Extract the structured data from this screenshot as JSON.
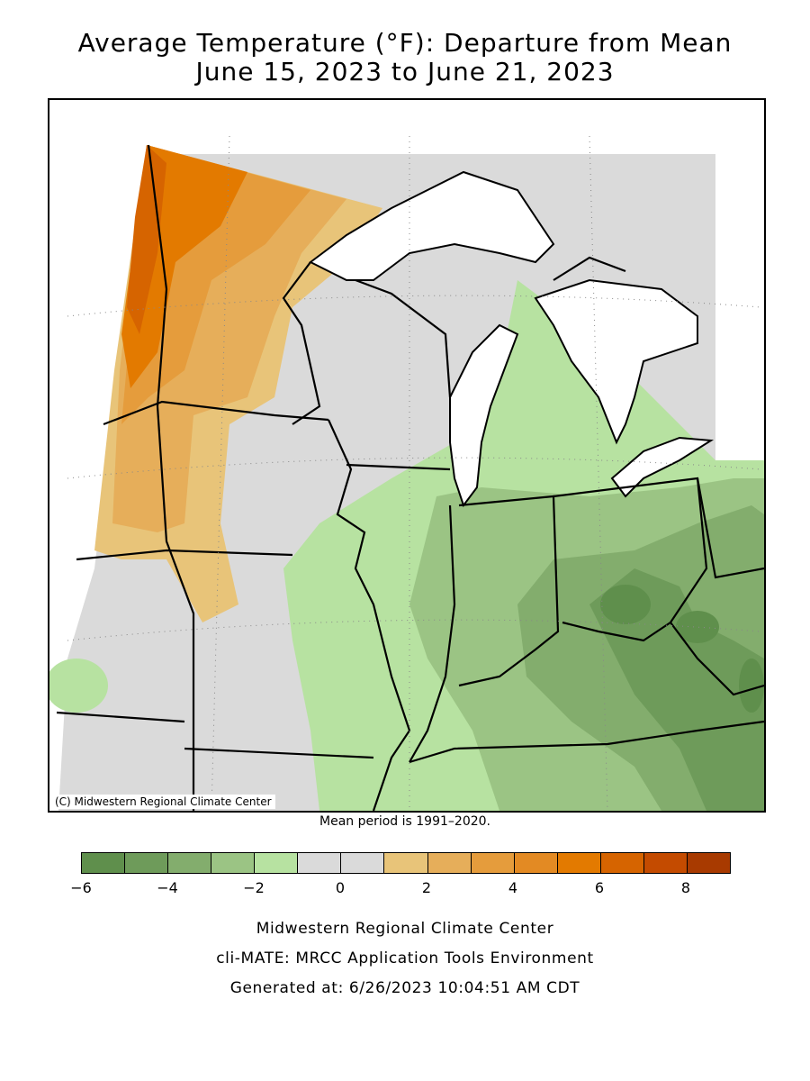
{
  "title_line1": "Average Temperature (°F): Departure from Mean",
  "title_line2": "June 15, 2023 to June 21, 2023",
  "map": {
    "region": "Midwest United States",
    "copyright": "(C) Midwestern Regional Climate Center"
  },
  "mean_period": "Mean period is 1991–2020.",
  "legend": {
    "colors": [
      "#5f8f4c",
      "#6e9b5a",
      "#83ad6d",
      "#9bc484",
      "#b7e2a1",
      "#dadada",
      "#dadada",
      "#e8c479",
      "#e6ae5a",
      "#e59c3c",
      "#e38a23",
      "#e37a00",
      "#d66400",
      "#c44b00",
      "#a83a00"
    ],
    "tick_labels": [
      "−6",
      "−4",
      "−2",
      "0",
      "2",
      "4",
      "6",
      "8"
    ],
    "tick_values": [
      -6,
      -4,
      -2,
      0,
      2,
      4,
      6,
      8
    ],
    "min": -6,
    "max": 9
  },
  "credits": {
    "line1": "Midwestern Regional Climate Center",
    "line2": "cli-MATE: MRCC Application Tools Environment",
    "line3": "Generated at: 6/26/2023 10:04:51 AM CDT"
  }
}
